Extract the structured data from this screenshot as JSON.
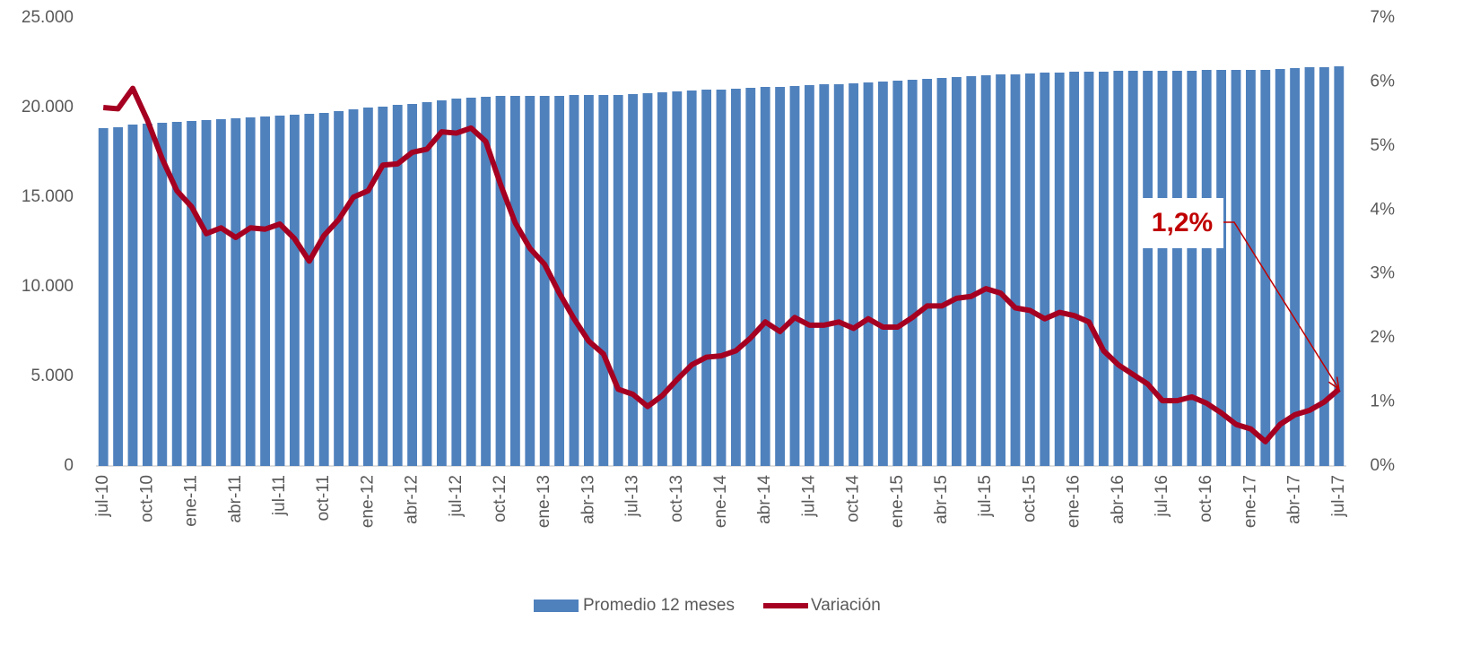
{
  "chart_data": {
    "type": "bar-line",
    "categories": [
      "jul-10",
      null,
      null,
      "oct-10",
      null,
      null,
      "ene-11",
      null,
      null,
      "abr-11",
      null,
      null,
      "jul-11",
      null,
      null,
      "oct-11",
      null,
      null,
      "ene-12",
      null,
      null,
      "abr-12",
      null,
      null,
      "jul-12",
      null,
      null,
      "oct-12",
      null,
      null,
      "ene-13",
      null,
      null,
      "abr-13",
      null,
      null,
      "jul-13",
      null,
      null,
      "oct-13",
      null,
      null,
      "ene-14",
      null,
      null,
      "abr-14",
      null,
      null,
      "jul-14",
      null,
      null,
      "oct-14",
      null,
      null,
      "ene-15",
      null,
      null,
      "abr-15",
      null,
      null,
      "jul-15",
      null,
      null,
      "oct-15",
      null,
      null,
      "ene-16",
      null,
      null,
      "abr-16",
      null,
      null,
      "jul-16",
      null,
      null,
      "oct-16",
      null,
      null,
      "ene-17",
      null,
      null,
      "abr-17",
      null,
      null,
      "jul-17"
    ],
    "series": [
      {
        "name": "Promedio 12 meses",
        "type": "bar",
        "color": "#4f81bd",
        "values": [
          18850,
          18900,
          19050,
          19100,
          19150,
          19200,
          19250,
          19300,
          19350,
          19400,
          19450,
          19500,
          19550,
          19600,
          19650,
          19700,
          19800,
          19900,
          20000,
          20050,
          20150,
          20200,
          20300,
          20400,
          20500,
          20550,
          20600,
          20650,
          20650,
          20650,
          20650,
          20650,
          20700,
          20700,
          20700,
          20700,
          20750,
          20800,
          20850,
          20900,
          20950,
          21000,
          21000,
          21050,
          21100,
          21150,
          21150,
          21200,
          21250,
          21300,
          21300,
          21350,
          21400,
          21450,
          21500,
          21550,
          21600,
          21650,
          21700,
          21750,
          21800,
          21850,
          21850,
          21900,
          21950,
          21950,
          22000,
          22000,
          22000,
          22050,
          22050,
          22050,
          22050,
          22050,
          22050,
          22100,
          22100,
          22100,
          22100,
          22100,
          22150,
          22200,
          22250,
          22250,
          22300
        ]
      },
      {
        "name": "Variación",
        "type": "line",
        "axis": "y2",
        "color": "#a50021",
        "values": [
          5.6,
          5.58,
          5.9,
          5.4,
          4.8,
          4.3,
          4.05,
          3.63,
          3.72,
          3.57,
          3.72,
          3.7,
          3.78,
          3.55,
          3.2,
          3.6,
          3.85,
          4.2,
          4.3,
          4.7,
          4.72,
          4.9,
          4.95,
          5.22,
          5.2,
          5.28,
          5.07,
          4.4,
          3.8,
          3.4,
          3.15,
          2.7,
          2.3,
          1.95,
          1.75,
          1.2,
          1.12,
          0.93,
          1.1,
          1.35,
          1.58,
          1.7,
          1.72,
          1.8,
          2.0,
          2.25,
          2.1,
          2.32,
          2.2,
          2.2,
          2.25,
          2.15,
          2.3,
          2.17,
          2.17,
          2.32,
          2.5,
          2.5,
          2.62,
          2.65,
          2.77,
          2.7,
          2.47,
          2.43,
          2.3,
          2.4,
          2.35,
          2.25,
          1.8,
          1.58,
          1.43,
          1.28,
          1.02,
          1.02,
          1.08,
          0.98,
          0.83,
          0.65,
          0.58,
          0.38,
          0.65,
          0.8,
          0.87,
          1.0,
          1.2
        ]
      }
    ],
    "ylim": [
      0,
      25000
    ],
    "yticks": [
      0,
      {
        "value": 5000,
        "label": "5.000"
      },
      {
        "value": 10000,
        "label": "10.000"
      },
      {
        "value": 15000,
        "label": "15.000"
      },
      {
        "value": 20000,
        "label": "20.000"
      },
      {
        "value": 25000,
        "label": "25.000"
      }
    ],
    "y2lim": [
      0,
      7
    ],
    "y2ticks": [
      {
        "value": 0,
        "label": "0%"
      },
      {
        "value": 1,
        "label": "1%"
      },
      {
        "value": 2,
        "label": "2%"
      },
      {
        "value": 3,
        "label": "3%"
      },
      {
        "value": 4,
        "label": "4%"
      },
      {
        "value": 5,
        "label": "5%"
      },
      {
        "value": 6,
        "label": "6%"
      },
      {
        "value": 7,
        "label": "7%"
      }
    ],
    "annotation": {
      "text": "1,2%",
      "point": 84
    },
    "legend": "bottom"
  }
}
